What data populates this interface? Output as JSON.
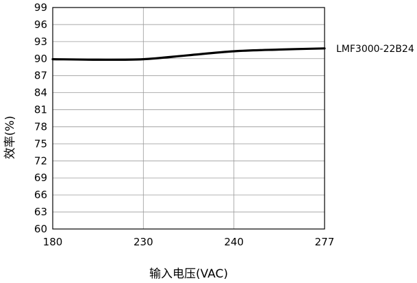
{
  "chart_data": {
    "type": "line",
    "title": "",
    "xlabel": "输入电压(VAC)",
    "ylabel": "效率(%)",
    "x_categories": [
      "180",
      "230",
      "240",
      "277"
    ],
    "ylim": [
      60,
      99
    ],
    "y_ticks": [
      "60",
      "63",
      "66",
      "69",
      "72",
      "75",
      "78",
      "81",
      "84",
      "87",
      "90",
      "93",
      "96",
      "99"
    ],
    "grid": true,
    "series": [
      {
        "name": "LMF3000-22B24",
        "x": [
          0,
          0.5,
          1,
          1.5,
          2,
          2.5,
          3
        ],
        "y": [
          89.9,
          89.8,
          89.9,
          90.6,
          91.3,
          91.6,
          91.8
        ]
      }
    ]
  }
}
